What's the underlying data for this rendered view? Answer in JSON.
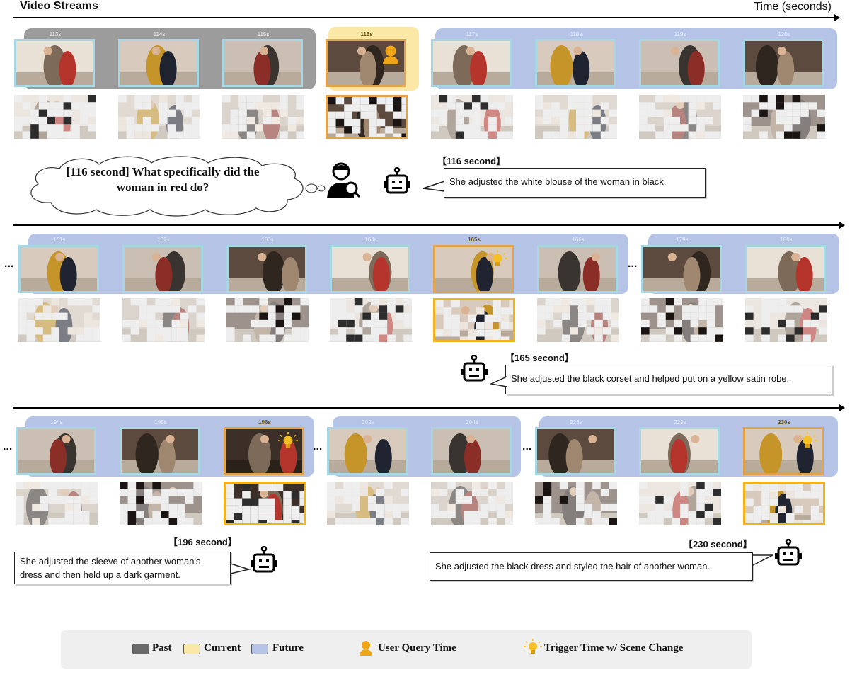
{
  "header": {
    "title": "Video Streams",
    "axis_label": "Time (seconds)"
  },
  "icons": [
    "user-query-icon",
    "robot-icon",
    "lightbulb-icon",
    "customer-service-icon"
  ],
  "colors": {
    "past": "#9c9c9c",
    "current": "#fbe8a6",
    "future": "#b4c3e6",
    "frame_border": "#a7d7e2",
    "query_border": "#e3a449",
    "trigger_border": "#f2b21c"
  },
  "rows": [
    {
      "frames": [
        {
          "t": "113s",
          "kind": "past"
        },
        {
          "t": "114s",
          "kind": "past"
        },
        {
          "t": "115s",
          "kind": "past"
        },
        {
          "t": "116s",
          "kind": "current",
          "icon": "user-query-icon"
        },
        {
          "t": "117s",
          "kind": "future"
        },
        {
          "t": "118s",
          "kind": "future"
        },
        {
          "t": "119s",
          "kind": "future"
        },
        {
          "t": "120s",
          "kind": "future"
        }
      ]
    },
    {
      "frames": [
        {
          "t": "161s",
          "kind": "future"
        },
        {
          "t": "162s",
          "kind": "future"
        },
        {
          "t": "163s",
          "kind": "future"
        },
        {
          "t": "164s",
          "kind": "future"
        },
        {
          "t": "165s",
          "kind": "trigger",
          "icon": "lightbulb-icon"
        },
        {
          "t": "166s",
          "kind": "future"
        },
        {
          "t": "179s",
          "kind": "future"
        },
        {
          "t": "180s",
          "kind": "future"
        }
      ]
    },
    {
      "frames": [
        {
          "t": "194s",
          "kind": "future"
        },
        {
          "t": "195s",
          "kind": "future"
        },
        {
          "t": "196s",
          "kind": "trigger",
          "icon": "lightbulb-icon"
        },
        {
          "t": "202s",
          "kind": "future"
        },
        {
          "t": "204s",
          "kind": "future"
        },
        {
          "t": "228s",
          "kind": "future"
        },
        {
          "t": "229s",
          "kind": "future"
        },
        {
          "t": "230s",
          "kind": "trigger",
          "icon": "lightbulb-icon"
        }
      ]
    }
  ],
  "ellipsis": "...",
  "query": {
    "text_line1": "[116 second] What specifically did the",
    "text_line2": "woman in red do?"
  },
  "responses": [
    {
      "stamp": "【116 second】",
      "text": "She adjusted the white blouse of the woman in black."
    },
    {
      "stamp": "【165 second】",
      "text": "She adjusted the black corset and helped put on a yellow satin robe."
    },
    {
      "stamp": "【196 second】",
      "text_line1": "She adjusted the sleeve of another woman's",
      "text_line2": "dress and then held up a dark garment."
    },
    {
      "stamp": "【230 second】",
      "text": "She adjusted the black dress and styled the hair of another woman."
    }
  ],
  "legend": {
    "past": "Past",
    "current": "Current",
    "future": "Future",
    "query": "User Query Time",
    "trigger": "Trigger Time w/ Scene Change"
  }
}
